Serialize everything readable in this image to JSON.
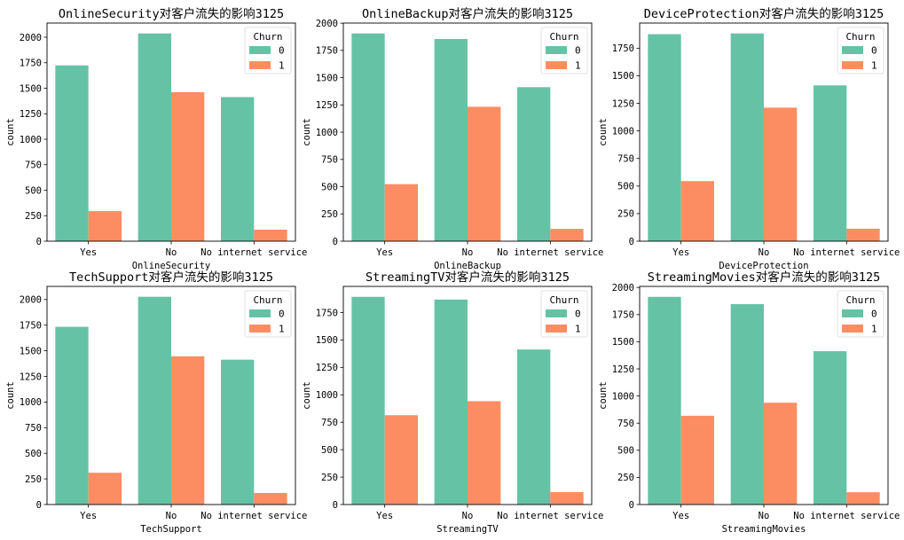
{
  "colors": {
    "churn_0": "#66c2a5",
    "churn_1": "#fc8d62",
    "axis": "#000000"
  },
  "chart_data": [
    {
      "type": "bar",
      "title": "OnlineSecurity对客户流失的影响3125",
      "xlabel": "OnlineSecurity",
      "ylabel": "count",
      "categories": [
        "Yes",
        "No",
        "No internet service"
      ],
      "series": [
        {
          "name": "0",
          "values": [
            1724,
            2037,
            1413
          ]
        },
        {
          "name": "1",
          "values": [
            295,
            1461,
            113
          ]
        }
      ],
      "ylim": [
        0,
        2139
      ],
      "yticks": [
        0,
        250,
        500,
        750,
        1000,
        1250,
        1500,
        1750,
        2000
      ],
      "legend": {
        "title": "Churn",
        "placement": "top-right"
      },
      "grid": false
    },
    {
      "type": "bar",
      "title": "OnlineBackup对客户流失的影响3125",
      "xlabel": "OnlineBackup",
      "ylabel": "count",
      "categories": [
        "Yes",
        "No",
        "No internet service"
      ],
      "series": [
        {
          "name": "0",
          "values": [
            1906,
            1855,
            1413
          ]
        },
        {
          "name": "1",
          "values": [
            523,
            1233,
            113
          ]
        }
      ],
      "ylim": [
        0,
        2001
      ],
      "yticks": [
        0,
        250,
        500,
        750,
        1000,
        1250,
        1500,
        1750,
        2000
      ],
      "legend": {
        "title": "Churn",
        "placement": "top-right"
      },
      "grid": false
    },
    {
      "type": "bar",
      "title": "DeviceProtection对客户流失的影响3125",
      "xlabel": "DeviceProtection",
      "ylabel": "count",
      "categories": [
        "Yes",
        "No",
        "No internet service"
      ],
      "series": [
        {
          "name": "0",
          "values": [
            1877,
            1884,
            1413
          ]
        },
        {
          "name": "1",
          "values": [
            545,
            1211,
            113
          ]
        }
      ],
      "ylim": [
        0,
        1978
      ],
      "yticks": [
        0,
        250,
        500,
        750,
        1000,
        1250,
        1500,
        1750
      ],
      "legend": {
        "title": "Churn",
        "placement": "top-right"
      },
      "grid": false
    },
    {
      "type": "bar",
      "title": "TechSupport对客户流失的影响3125",
      "xlabel": "TechSupport",
      "ylabel": "count",
      "categories": [
        "Yes",
        "No",
        "No internet service"
      ],
      "series": [
        {
          "name": "0",
          "values": [
            1734,
            2027,
            1413
          ]
        },
        {
          "name": "1",
          "values": [
            310,
            1446,
            113
          ]
        }
      ],
      "ylim": [
        0,
        2128
      ],
      "yticks": [
        0,
        250,
        500,
        750,
        1000,
        1250,
        1500,
        1750,
        2000
      ],
      "legend": {
        "title": "Churn",
        "placement": "top-right"
      },
      "grid": false
    },
    {
      "type": "bar",
      "title": "StreamingTV对客户流失的影响3125",
      "xlabel": "StreamingTV",
      "ylabel": "count",
      "categories": [
        "Yes",
        "No",
        "No internet service"
      ],
      "series": [
        {
          "name": "0",
          "values": [
            1893,
            1868,
            1413
          ]
        },
        {
          "name": "1",
          "values": [
            814,
            942,
            113
          ]
        }
      ],
      "ylim": [
        0,
        1988
      ],
      "yticks": [
        0,
        250,
        500,
        750,
        1000,
        1250,
        1500,
        1750
      ],
      "legend": {
        "title": "Churn",
        "placement": "top-right"
      },
      "grid": false
    },
    {
      "type": "bar",
      "title": "StreamingMovies对客户流失的影响3125",
      "xlabel": "StreamingMovies",
      "ylabel": "count",
      "categories": [
        "Yes",
        "No",
        "No internet service"
      ],
      "series": [
        {
          "name": "0",
          "values": [
            1914,
            1847,
            1413
          ]
        },
        {
          "name": "1",
          "values": [
            818,
            938,
            113
          ]
        }
      ],
      "ylim": [
        0,
        2010
      ],
      "yticks": [
        0,
        250,
        500,
        750,
        1000,
        1250,
        1500,
        1750,
        2000
      ],
      "legend": {
        "title": "Churn",
        "placement": "top-right"
      },
      "grid": false
    }
  ]
}
